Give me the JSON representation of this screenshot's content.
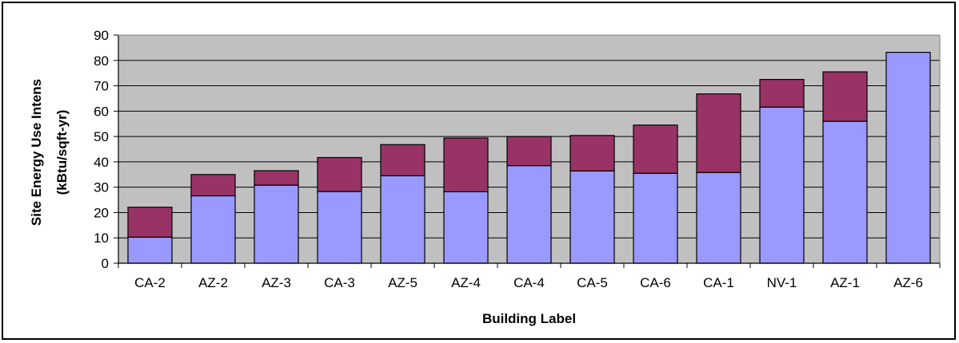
{
  "chart_data": {
    "type": "bar",
    "stacked": true,
    "title": "",
    "xlabel": "Building Label",
    "ylabel_lines": [
      "Site Energy Use Intens",
      "(kBtu/sqft-yr)"
    ],
    "ylim": [
      0,
      90
    ],
    "yticks": [
      0,
      10,
      20,
      30,
      40,
      50,
      60,
      70,
      80,
      90
    ],
    "grid": true,
    "legend": "none",
    "categories": [
      "CA-2",
      "AZ-2",
      "AZ-3",
      "CA-3",
      "AZ-5",
      "AZ-4",
      "CA-4",
      "CA-5",
      "CA-6",
      "CA-1",
      "NV-1",
      "AZ-1",
      "AZ-6"
    ],
    "series": [
      {
        "color": "#9999ff",
        "values": [
          10.3,
          26.6,
          30.8,
          28.3,
          34.5,
          28.2,
          38.5,
          36.4,
          35.5,
          35.8,
          61.6,
          56.0,
          83.2
        ]
      },
      {
        "color": "#993366",
        "values": [
          11.8,
          8.4,
          5.7,
          13.4,
          12.3,
          21.2,
          11.5,
          14.0,
          19.0,
          31.0,
          10.9,
          19.5,
          0
        ]
      }
    ],
    "plot_background": "#c0c0c0"
  }
}
